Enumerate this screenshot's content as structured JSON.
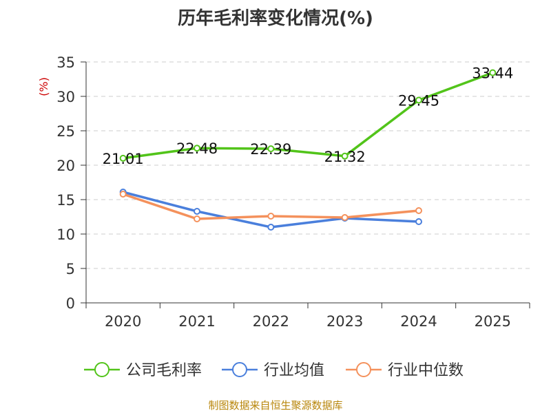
{
  "chart_data": {
    "type": "line",
    "title": "历年毛利率变化情况(%)",
    "ylabel": "(%)",
    "xlabel": "",
    "ylim": [
      0,
      35
    ],
    "yticks": [
      0,
      5,
      10,
      15,
      20,
      25,
      30,
      35
    ],
    "categories": [
      "2020",
      "2021",
      "2022",
      "2023",
      "2024",
      "2025"
    ],
    "grid": true,
    "legend_position": "bottom",
    "series": [
      {
        "name": "公司毛利率",
        "color": "#52c41a",
        "values": [
          21.01,
          22.48,
          22.39,
          21.32,
          29.45,
          33.44
        ],
        "labels": [
          "21.01",
          "22.48",
          "22.39",
          "21.32",
          "29.45",
          "33.44"
        ]
      },
      {
        "name": "行业均值",
        "color": "#4a7fdc",
        "values": [
          16.1,
          13.3,
          11.0,
          12.3,
          11.8,
          null
        ]
      },
      {
        "name": "行业中位数",
        "color": "#f4915c",
        "values": [
          15.8,
          12.2,
          12.6,
          12.4,
          13.4,
          null
        ]
      }
    ]
  },
  "source": "制图数据来自恒生聚源数据库"
}
